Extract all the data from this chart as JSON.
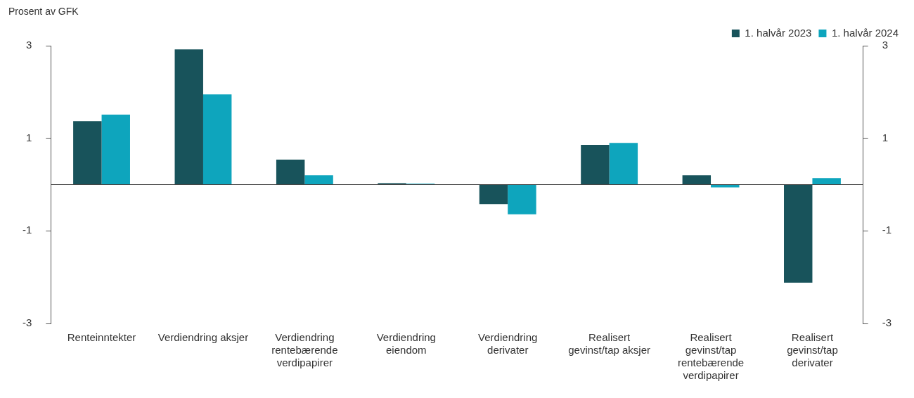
{
  "chart_data": {
    "type": "bar",
    "ylabel": "Prosent av GFK",
    "categories": [
      "Renteinntekter",
      "Verdiendring aksjer",
      "Verdiendring rentebærende verdipapirer",
      "Verdiendring eiendom",
      "Verdiendring derivater",
      "Realisert gevinst/tap aksjer",
      "Realisert gevinst/tap rentebærende verdipapirer",
      "Realisert gevinst/tap derivater"
    ],
    "series": [
      {
        "name": "1. halvår 2023",
        "color": "#18535b",
        "values": [
          1.37,
          2.92,
          0.54,
          0.03,
          -0.42,
          0.86,
          0.2,
          -2.12
        ]
      },
      {
        "name": "1. halvår 2024",
        "color": "#0ea5bd",
        "values": [
          1.51,
          1.95,
          0.2,
          0.02,
          -0.64,
          0.9,
          -0.06,
          0.14
        ]
      }
    ],
    "ylim": [
      -3,
      3
    ],
    "yticks": [
      -3,
      -1,
      1,
      3
    ],
    "y2lim": [
      -3,
      3
    ],
    "y2ticks": [
      -3,
      -1,
      1,
      3
    ],
    "legend": "top right"
  }
}
